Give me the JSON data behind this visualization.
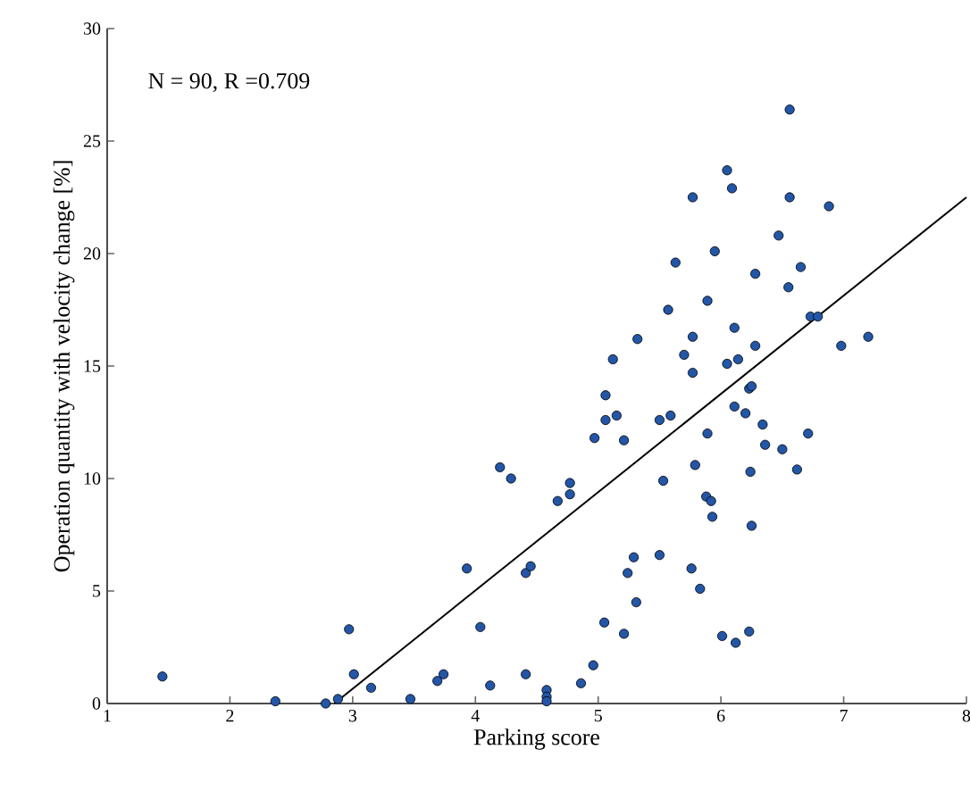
{
  "chart_data": {
    "type": "scatter",
    "xlabel": "Parking score",
    "ylabel": "Operation quantity with velocity change [%]",
    "annotations": [
      "N = 90, R =0.709"
    ],
    "xlim": [
      1,
      8
    ],
    "xticks": [
      1,
      2,
      3,
      4,
      5,
      6,
      7,
      8
    ],
    "ylim": [
      0,
      30
    ],
    "yticks": [
      0,
      5,
      10,
      15,
      20,
      25,
      30
    ],
    "grid": false,
    "marker": "circle",
    "series": [
      {
        "color": "#2356a6",
        "x": [
          1.45,
          2.37,
          2.78,
          2.88,
          2.97,
          3.01,
          3.15,
          3.47,
          3.69,
          3.74,
          3.93,
          4.04,
          4.12,
          4.2,
          4.29,
          4.41,
          4.45,
          4.41,
          4.58,
          4.58,
          4.58,
          4.67,
          4.77,
          4.77,
          4.86,
          4.96,
          4.97,
          5.05,
          5.06,
          5.06,
          5.12,
          5.15,
          5.21,
          5.21,
          5.24,
          5.29,
          5.31,
          5.32,
          5.5,
          5.5,
          5.53,
          5.57,
          5.59,
          5.63,
          5.7,
          5.76,
          5.77,
          5.77,
          5.77,
          5.79,
          5.83,
          5.88,
          5.92,
          5.89,
          5.93,
          5.89,
          5.95,
          6.01,
          6.05,
          6.05,
          6.09,
          6.11,
          6.11,
          6.12,
          6.14,
          6.2,
          6.23,
          6.25,
          6.23,
          6.24,
          6.25,
          6.28,
          6.28,
          6.34,
          6.36,
          6.47,
          6.5,
          6.55,
          6.56,
          6.56,
          6.62,
          6.65,
          6.71,
          6.73,
          6.79,
          6.88,
          6.98,
          7.2
        ],
        "values": [
          1.2,
          0.1,
          0.0,
          0.2,
          3.3,
          1.3,
          0.7,
          0.2,
          1.0,
          1.3,
          6.0,
          3.4,
          0.8,
          10.5,
          10.0,
          5.8,
          6.1,
          1.3,
          0.6,
          0.3,
          0.1,
          9.0,
          9.8,
          9.3,
          0.9,
          1.7,
          11.8,
          3.6,
          12.6,
          13.7,
          15.3,
          12.8,
          11.7,
          3.1,
          5.8,
          6.5,
          4.5,
          16.2,
          6.6,
          12.6,
          9.9,
          17.5,
          12.8,
          19.6,
          15.5,
          6.0,
          22.5,
          16.3,
          14.7,
          10.6,
          5.1,
          9.2,
          9.0,
          12.0,
          8.3,
          17.9,
          20.1,
          3.0,
          23.7,
          15.1,
          22.9,
          16.7,
          13.2,
          2.7,
          15.3,
          12.9,
          14.0,
          14.1,
          3.2,
          10.3,
          7.9,
          19.1,
          15.9,
          12.4,
          11.5,
          20.8,
          11.3,
          18.5,
          26.4,
          22.5,
          10.4,
          19.4,
          12.0,
          17.2,
          17.2,
          22.1,
          15.9,
          16.3
        ]
      },
      {
        "type": "line",
        "color": "#000000",
        "line_style": "solid",
        "marker": "none",
        "x": [
          2.85,
          8
        ],
        "values": [
          0,
          22.5
        ]
      }
    ]
  }
}
